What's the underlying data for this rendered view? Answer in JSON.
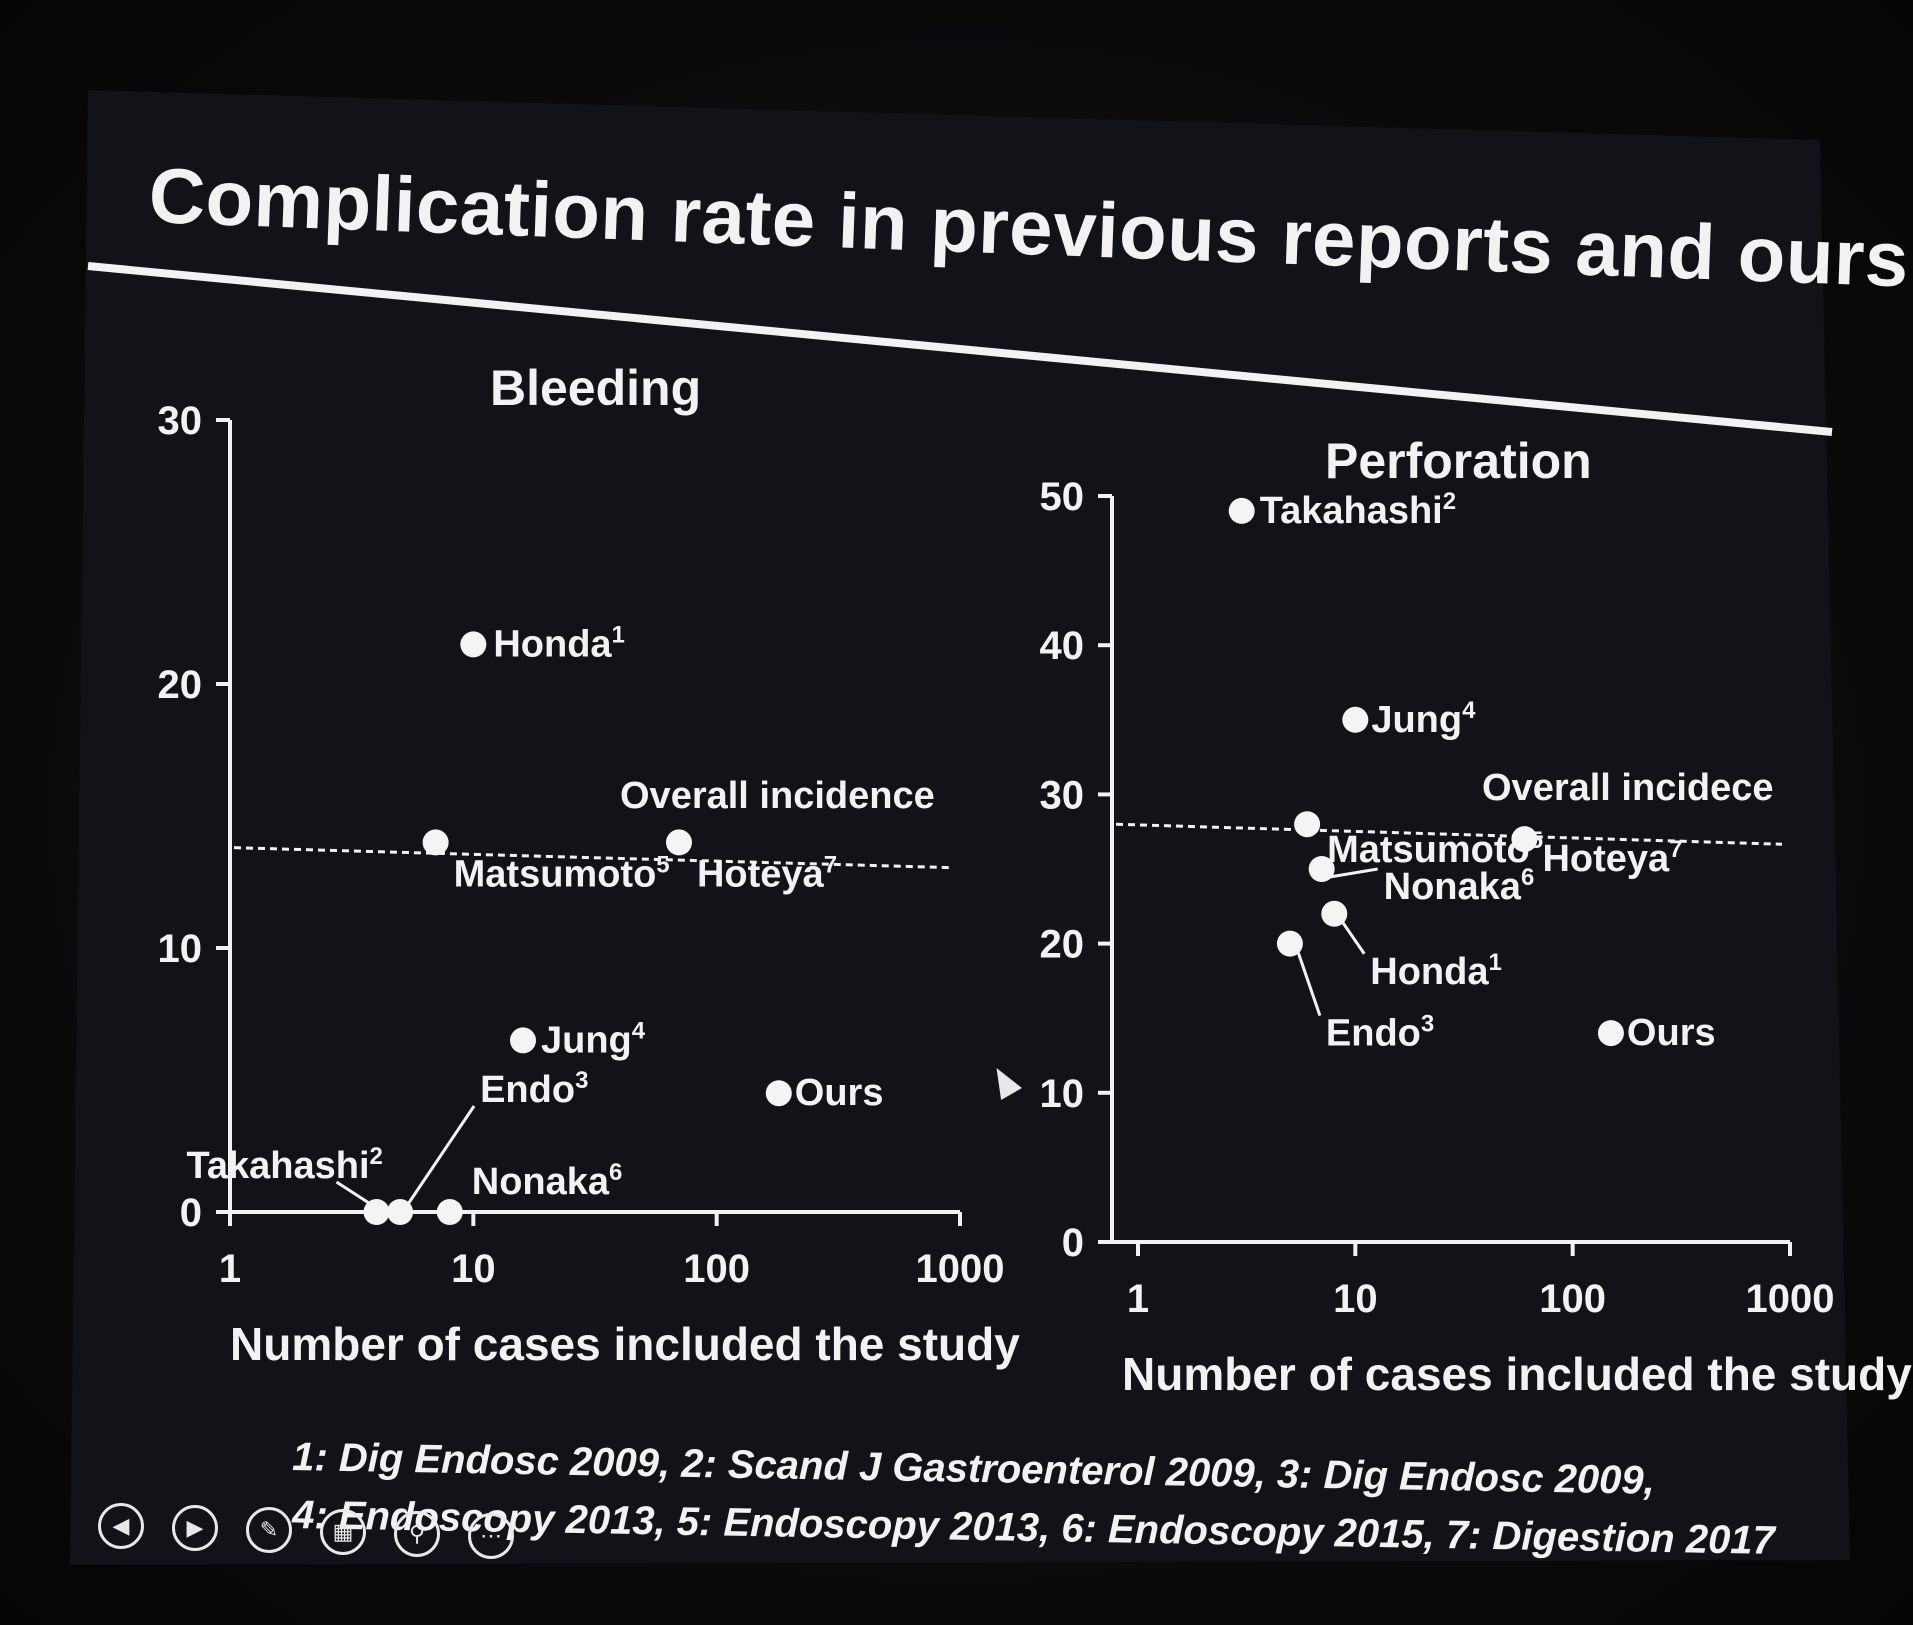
{
  "slide_title": "Complication rate in previous reports and ours",
  "references": {
    "line1": "1: Dig Endosc 2009, 2: Scand J Gastroenterol 2009, 3: Dig Endosc 2009,",
    "line2": "4: Endoscopy 2013, 5: Endoscopy 2013, 6: Endoscopy 2015, 7: Digestion 2017"
  },
  "chart_data": [
    {
      "type": "scatter",
      "title": "Bleeding",
      "xlabel": "Number of cases included the study",
      "ylabel": "",
      "xscale": "log",
      "xlim": [
        1,
        1000
      ],
      "ylim": [
        0,
        30
      ],
      "xticks": [
        "1",
        "10",
        "100",
        "1000"
      ],
      "yticks": [
        "0",
        "10",
        "20",
        "30"
      ],
      "reference_line": {
        "label": "Overall incidence",
        "y": 13.8
      },
      "points": [
        {
          "label": "Honda",
          "sup": "1",
          "x": 10,
          "y": 21.5
        },
        {
          "label": "Matsumoto",
          "sup": "5",
          "x": 7,
          "y": 14
        },
        {
          "label": "Hoteya",
          "sup": "7",
          "x": 70,
          "y": 14
        },
        {
          "label": "Jung",
          "sup": "4",
          "x": 16,
          "y": 6.5
        },
        {
          "label": "Ours",
          "sup": "",
          "x": 180,
          "y": 4.5
        },
        {
          "label": "Takahashi",
          "sup": "2",
          "x": 4,
          "y": 0
        },
        {
          "label": "Endo",
          "sup": "3",
          "x": 5,
          "y": 0
        },
        {
          "label": "Nonaka",
          "sup": "6",
          "x": 8,
          "y": 0
        }
      ]
    },
    {
      "type": "scatter",
      "title": "Perforation",
      "xlabel": "Number of cases included the study",
      "ylabel": "",
      "xscale": "log",
      "xlim": [
        1,
        1000
      ],
      "ylim": [
        0,
        50
      ],
      "xticks": [
        "1",
        "10",
        "100",
        "1000"
      ],
      "yticks": [
        "0",
        "10",
        "20",
        "30",
        "40",
        "50"
      ],
      "reference_line": {
        "label": "Overall incidece",
        "y": 28
      },
      "points": [
        {
          "label": "Takahashi",
          "sup": "2",
          "x": 3,
          "y": 49
        },
        {
          "label": "Jung",
          "sup": "4",
          "x": 10,
          "y": 35
        },
        {
          "label": "Matsumoto",
          "sup": "5",
          "x": 6,
          "y": 28
        },
        {
          "label": "Hoteya",
          "sup": "7",
          "x": 60,
          "y": 27
        },
        {
          "label": "Nonaka",
          "sup": "6",
          "x": 7,
          "y": 25
        },
        {
          "label": "Honda",
          "sup": "1",
          "x": 8,
          "y": 22
        },
        {
          "label": "Endo",
          "sup": "3",
          "x": 5,
          "y": 20
        },
        {
          "label": "Ours",
          "sup": "",
          "x": 150,
          "y": 14
        }
      ]
    }
  ]
}
